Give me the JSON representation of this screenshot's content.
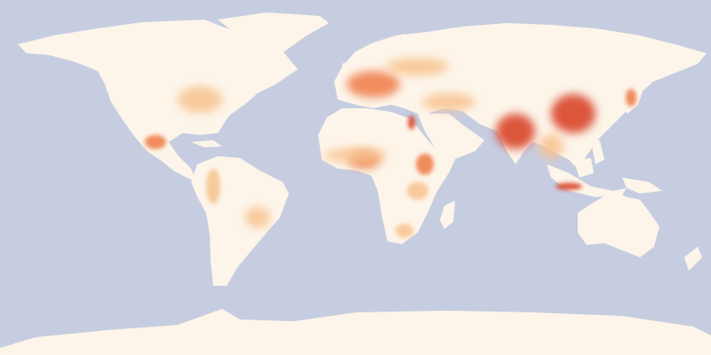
{
  "map": {
    "type": "world population density",
    "projection": "equirectangular",
    "labels_shown": false,
    "legend_shown": false,
    "colors": {
      "ocean": "#c6cde0",
      "land_low": "#fdf5ea",
      "density_mid": "#f7c38f",
      "density_high": "#ee7a45",
      "density_very_high": "#d9442a"
    }
  }
}
